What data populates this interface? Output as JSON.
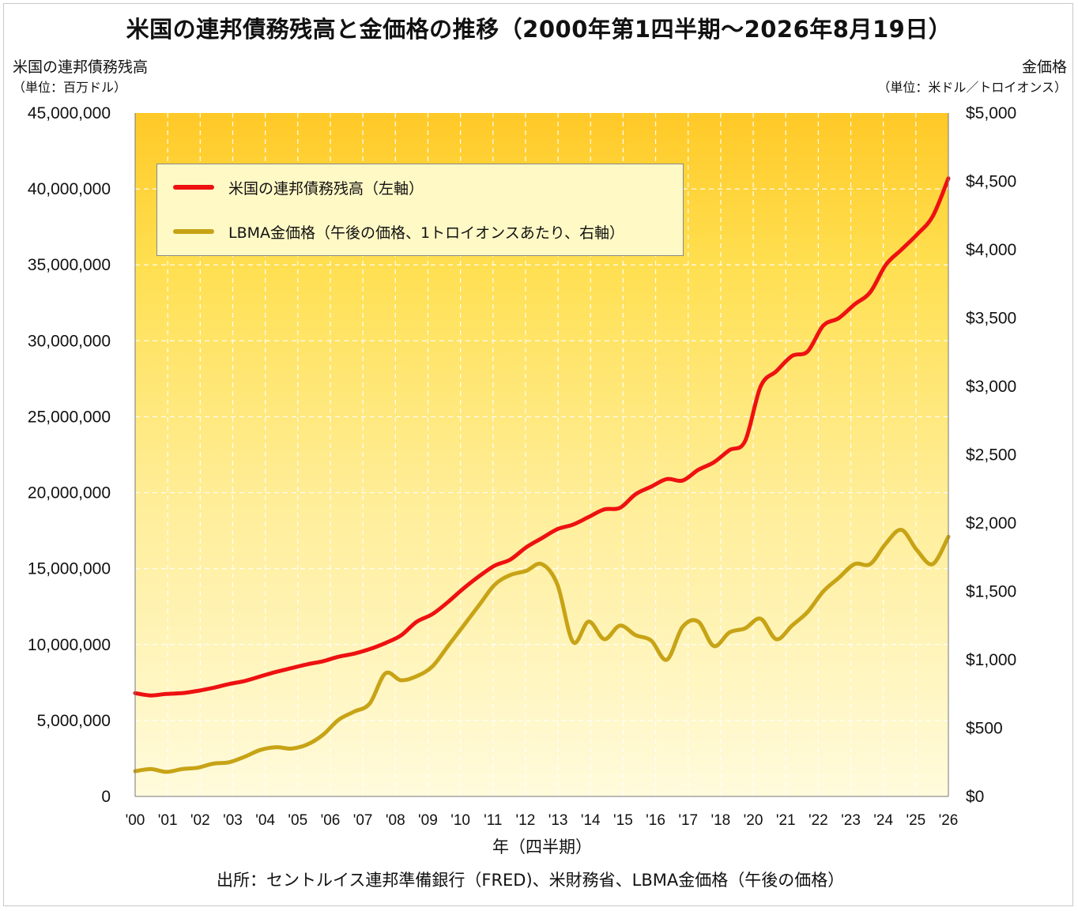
{
  "title": "米国の連邦債務残高と金価格の推移（2000年第1四半期～2026年8月19日）",
  "left_axis": {
    "title": "米国の連邦債務残高",
    "unit": "（単位：百万ドル）"
  },
  "right_axis": {
    "title": "金価格",
    "unit": "（単位：米ドル／トロイオンス）"
  },
  "xlabel": "年（四半期）",
  "source": "出所：セントルイス連邦準備銀行（FRED)、米財務省、LBMA金価格（午後の価格）",
  "legend": [
    {
      "label": "米国の連邦債務残高（左軸）",
      "color": "#ee1111"
    },
    {
      "label": "LBMA金価格（午後の価格、1トロイオンスあたり、右軸）",
      "color": "#c7a316"
    }
  ],
  "chart_data": {
    "type": "line",
    "title": "米国の連邦債務残高と金価格の推移（2000年第1四半期～2026年8月19日）",
    "xlabel": "年（四半期）",
    "ylabel_left": "米国の連邦債務残高（単位：百万ドル）",
    "ylabel_right": "金価格（単位：米ドル／トロイオンス）",
    "x_tick_labels": [
      "'00",
      "'01",
      "'02",
      "'03",
      "'04",
      "'05",
      "'06",
      "'07",
      "'08",
      "'09",
      "'10",
      "'11",
      "'12",
      "'13",
      "'14",
      "'15",
      "'16",
      "'17",
      "'18",
      "'20",
      "'21",
      "'22",
      "'23",
      "'24",
      "'25",
      "'26"
    ],
    "x_range": [
      2000,
      2026
    ],
    "y_left_ticks": [
      "0",
      "5,000,000",
      "10,000,000",
      "15,000,000",
      "20,000,000",
      "25,000,000",
      "30,000,000",
      "35,000,000",
      "40,000,000",
      "45,000,000"
    ],
    "y_right_ticks": [
      "$0",
      "$500",
      "$1,000",
      "$1,500",
      "$2,000",
      "$2,500",
      "$3,000",
      "$3,500",
      "$4,000",
      "$4,500",
      "$5,000"
    ],
    "ylim_left": [
      0,
      45000000
    ],
    "ylim_right": [
      0,
      5000
    ],
    "grid": true,
    "legend_position": "top-left",
    "series": [
      {
        "name": "米国の連邦債務残高（左軸）",
        "axis": "left",
        "color": "#ee1111",
        "points": [
          [
            2000.0,
            6800000
          ],
          [
            2000.5,
            6650000
          ],
          [
            2001.0,
            6750000
          ],
          [
            2001.5,
            6800000
          ],
          [
            2002.0,
            6950000
          ],
          [
            2002.5,
            7150000
          ],
          [
            2003.0,
            7400000
          ],
          [
            2003.5,
            7600000
          ],
          [
            2004.0,
            7900000
          ],
          [
            2004.5,
            8200000
          ],
          [
            2005.0,
            8450000
          ],
          [
            2005.5,
            8700000
          ],
          [
            2006.0,
            8900000
          ],
          [
            2006.5,
            9200000
          ],
          [
            2007.0,
            9400000
          ],
          [
            2007.5,
            9700000
          ],
          [
            2008.0,
            10100000
          ],
          [
            2008.5,
            10600000
          ],
          [
            2009.0,
            11500000
          ],
          [
            2009.5,
            12000000
          ],
          [
            2010.0,
            12800000
          ],
          [
            2010.5,
            13700000
          ],
          [
            2011.0,
            14500000
          ],
          [
            2011.5,
            15200000
          ],
          [
            2012.0,
            15600000
          ],
          [
            2012.5,
            16400000
          ],
          [
            2013.0,
            17000000
          ],
          [
            2013.5,
            17600000
          ],
          [
            2014.0,
            17900000
          ],
          [
            2014.5,
            18400000
          ],
          [
            2015.0,
            18900000
          ],
          [
            2015.5,
            19000000
          ],
          [
            2016.0,
            19900000
          ],
          [
            2016.5,
            20400000
          ],
          [
            2017.0,
            20900000
          ],
          [
            2017.5,
            20800000
          ],
          [
            2018.0,
            21500000
          ],
          [
            2018.5,
            22000000
          ],
          [
            2019.0,
            22800000
          ],
          [
            2019.5,
            23400000
          ],
          [
            2020.0,
            27000000
          ],
          [
            2020.5,
            28000000
          ],
          [
            2021.0,
            29000000
          ],
          [
            2021.5,
            29300000
          ],
          [
            2022.0,
            31000000
          ],
          [
            2022.5,
            31500000
          ],
          [
            2023.0,
            32400000
          ],
          [
            2023.5,
            33200000
          ],
          [
            2024.0,
            35000000
          ],
          [
            2024.5,
            36000000
          ],
          [
            2025.0,
            37000000
          ],
          [
            2025.5,
            38200000
          ],
          [
            2026.0,
            40700000
          ]
        ]
      },
      {
        "name": "LBMA金価格（午後の価格、1トロイオンスあたり、右軸）",
        "axis": "right",
        "color": "#c7a316",
        "points": [
          [
            2000.0,
            185
          ],
          [
            2000.5,
            200
          ],
          [
            2001.0,
            180
          ],
          [
            2001.5,
            200
          ],
          [
            2002.0,
            210
          ],
          [
            2002.5,
            240
          ],
          [
            2003.0,
            250
          ],
          [
            2003.5,
            290
          ],
          [
            2004.0,
            340
          ],
          [
            2004.5,
            360
          ],
          [
            2005.0,
            350
          ],
          [
            2005.5,
            380
          ],
          [
            2006.0,
            450
          ],
          [
            2006.5,
            560
          ],
          [
            2007.0,
            620
          ],
          [
            2007.5,
            680
          ],
          [
            2008.0,
            900
          ],
          [
            2008.5,
            850
          ],
          [
            2009.0,
            880
          ],
          [
            2009.5,
            950
          ],
          [
            2010.0,
            1100
          ],
          [
            2010.5,
            1250
          ],
          [
            2011.0,
            1400
          ],
          [
            2011.5,
            1550
          ],
          [
            2012.0,
            1620
          ],
          [
            2012.5,
            1650
          ],
          [
            2013.0,
            1700
          ],
          [
            2013.5,
            1550
          ],
          [
            2014.0,
            1130
          ],
          [
            2014.5,
            1280
          ],
          [
            2015.0,
            1150
          ],
          [
            2015.5,
            1250
          ],
          [
            2016.0,
            1180
          ],
          [
            2016.5,
            1140
          ],
          [
            2017.0,
            1000
          ],
          [
            2017.5,
            1240
          ],
          [
            2018.0,
            1280
          ],
          [
            2018.5,
            1100
          ],
          [
            2019.0,
            1200
          ],
          [
            2019.5,
            1230
          ],
          [
            2020.0,
            1300
          ],
          [
            2020.5,
            1150
          ],
          [
            2021.0,
            1250
          ],
          [
            2021.5,
            1350
          ],
          [
            2022.0,
            1500
          ],
          [
            2022.5,
            1600
          ],
          [
            2023.0,
            1700
          ],
          [
            2023.5,
            1700
          ],
          [
            2024.0,
            1850
          ],
          [
            2024.5,
            1950
          ],
          [
            2025.0,
            1800
          ],
          [
            2025.5,
            1700
          ],
          [
            2026.0,
            1900
          ]
        ]
      }
    ]
  }
}
